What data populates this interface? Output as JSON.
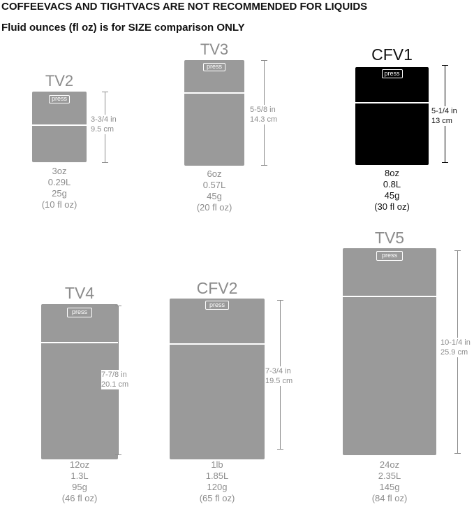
{
  "header": {
    "line1": "COFFEEVACS AND TIGHTVACS ARE NOT RECOMMENDED FOR LIQUIDS",
    "line2": "Fluid ounces (fl oz) is for SIZE comparison ONLY"
  },
  "button_label": "press",
  "colors": {
    "gray_can": "#9a9a9a",
    "black_can": "#000000",
    "gray_text": "#8c8c8c",
    "black_text": "#111111",
    "dim_line_gray": "#8c8c8c",
    "dim_line_black": "#000000"
  },
  "containers": [
    {
      "id": "tv2",
      "name": "TV2",
      "height_in": "3-3/4 in",
      "height_cm": "9.5 cm",
      "capacity": "3oz",
      "liters": "0.29L",
      "grams": "25g",
      "fluid_oz": "(10 fl oz)",
      "color": "gray"
    },
    {
      "id": "tv3",
      "name": "TV3",
      "height_in": "5-5/8 in",
      "height_cm": "14.3 cm",
      "capacity": "6oz",
      "liters": "0.57L",
      "grams": "45g",
      "fluid_oz": "(20 fl oz)",
      "color": "gray"
    },
    {
      "id": "cfv1",
      "name": "CFV1",
      "height_in": "5-1/4 in",
      "height_cm": "13 cm",
      "capacity": "8oz",
      "liters": "0.8L",
      "grams": "45g",
      "fluid_oz": "(30 fl oz)",
      "color": "black"
    },
    {
      "id": "tv4",
      "name": "TV4",
      "height_in": "7-7/8 in",
      "height_cm": "20.1 cm",
      "capacity": "12oz",
      "liters": "1.3L",
      "grams": "95g",
      "fluid_oz": "(46 fl oz)",
      "color": "gray"
    },
    {
      "id": "cfv2",
      "name": "CFV2",
      "height_in": "7-3/4 in",
      "height_cm": "19.5 cm",
      "capacity": "1lb",
      "liters": "1.85L",
      "grams": "120g",
      "fluid_oz": "(65 fl oz)",
      "color": "gray"
    },
    {
      "id": "tv5",
      "name": "TV5",
      "height_in": "10-1/4 in",
      "height_cm": "25.9 cm",
      "capacity": "24oz",
      "liters": "2.35L",
      "grams": "145g",
      "fluid_oz": "(84 fl oz)",
      "color": "gray"
    }
  ]
}
